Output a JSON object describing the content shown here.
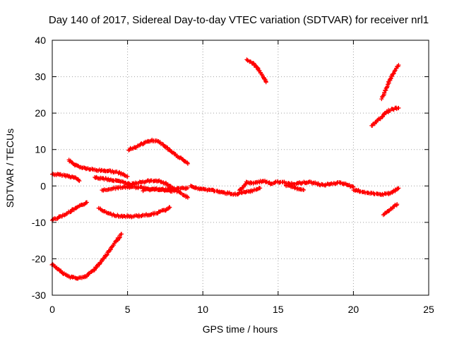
{
  "chart_data": {
    "type": "scatter",
    "title": "Day 140 of 2017, Sidereal Day-to-day VTEC variation (SDTVAR) for receiver nrl1",
    "xlabel": "GPS time / hours",
    "ylabel": "SDTVAR / TECUs",
    "xlim": [
      0,
      25
    ],
    "ylim": [
      -30,
      40
    ],
    "xticks": [
      0,
      5,
      10,
      15,
      20,
      25
    ],
    "yticks": [
      -30,
      -20,
      -10,
      0,
      10,
      20,
      30,
      40
    ],
    "xtick_labels": [
      "0",
      "5",
      "10",
      "15",
      "20",
      "25"
    ],
    "ytick_labels": [
      "-30",
      "-20",
      "-10",
      "0",
      "10",
      "20",
      "30",
      "40"
    ],
    "grid": true,
    "marker": "plus",
    "series_color": "#ff0000",
    "series": [
      {
        "x": [
          0.0,
          0.4,
          0.8,
          1.2,
          1.6,
          1.8
        ],
        "y": [
          3.2,
          3.1,
          2.9,
          2.6,
          2.1,
          1.4
        ]
      },
      {
        "x": [
          0.0,
          0.5,
          1.0,
          1.5,
          2.0,
          2.3
        ],
        "y": [
          -9.3,
          -8.5,
          -7.5,
          -6.3,
          -5.2,
          -4.5
        ]
      },
      {
        "x": [
          0.0,
          0.4,
          0.8,
          1.2,
          1.6,
          2.0,
          2.3
        ],
        "y": [
          -21.5,
          -22.8,
          -24.2,
          -25.0,
          -25.3,
          -25.2,
          -24.8
        ]
      },
      {
        "x": [
          2.3,
          2.7,
          3.1,
          3.5,
          3.9,
          4.3,
          4.6
        ],
        "y": [
          -24.6,
          -23.3,
          -21.5,
          -19.4,
          -17.2,
          -14.9,
          -13.2
        ]
      },
      {
        "x": [
          1.1,
          1.5,
          2.0,
          2.5,
          3.0,
          3.5,
          4.0,
          4.5,
          5.0
        ],
        "y": [
          7.1,
          5.8,
          5.0,
          4.6,
          4.3,
          4.2,
          4.0,
          3.5,
          2.6
        ]
      },
      {
        "x": [
          2.8,
          3.4,
          4.0,
          4.6,
          5.1
        ],
        "y": [
          2.3,
          2.0,
          1.6,
          1.1,
          0.7
        ]
      },
      {
        "x": [
          3.3,
          3.8,
          4.5,
          5.2,
          6.0,
          6.8,
          7.5,
          8.1
        ],
        "y": [
          -1.3,
          -0.8,
          -0.4,
          -0.3,
          -0.5,
          -0.9,
          -1.2,
          -1.4
        ]
      },
      {
        "x": [
          3.1,
          3.8,
          4.5,
          5.2,
          6.0,
          6.8,
          7.5,
          7.8
        ],
        "y": [
          -6.3,
          -7.7,
          -8.3,
          -8.4,
          -8.1,
          -7.6,
          -6.6,
          -5.9
        ]
      },
      {
        "x": [
          5.1,
          5.6,
          6.1,
          6.6,
          7.0,
          7.5,
          8.0,
          8.6,
          9.0
        ],
        "y": [
          10.0,
          10.8,
          11.8,
          12.5,
          12.3,
          10.8,
          9.1,
          7.4,
          6.1
        ]
      },
      {
        "x": [
          5.0,
          5.6,
          6.3,
          7.0,
          7.6,
          8.2,
          8.7,
          9.0
        ],
        "y": [
          0.2,
          0.8,
          1.3,
          1.5,
          0.6,
          -1.2,
          -2.4,
          -3.2
        ]
      },
      {
        "x": [
          6.0,
          6.5,
          7.0,
          7.5,
          8.0,
          8.5,
          9.0
        ],
        "y": [
          -1.2,
          -1.0,
          -0.9,
          -1.0,
          -0.8,
          -0.7,
          -0.5
        ]
      },
      {
        "x": [
          9.2,
          9.7,
          10.2,
          10.7,
          11.2,
          11.7,
          12.2,
          12.7,
          13.2,
          13.8
        ],
        "y": [
          0.0,
          -0.8,
          -1.0,
          -1.2,
          -1.8,
          -2.0,
          -2.3,
          -1.8,
          -1.5,
          -0.6
        ]
      },
      {
        "x": [
          12.4,
          12.9,
          13.4,
          14.0,
          14.5,
          15.0,
          15.5,
          16.0,
          16.5,
          17.0,
          17.5,
          18.0,
          18.5,
          19.0,
          19.5,
          20.0
        ],
        "y": [
          -1.5,
          0.9,
          0.8,
          1.4,
          0.6,
          1.1,
          0.9,
          0.6,
          0.8,
          1.1,
          0.7,
          0.2,
          0.6,
          0.9,
          0.4,
          -0.3
        ]
      },
      {
        "x": [
          15.5,
          16.0,
          16.7
        ],
        "y": [
          0.3,
          -0.4,
          -1.1
        ]
      },
      {
        "x": [
          20.0,
          20.5,
          21.0,
          21.5,
          22.0,
          22.5,
          23.0
        ],
        "y": [
          -1.0,
          -1.5,
          -2.0,
          -2.2,
          -2.3,
          -2.0,
          -0.6
        ]
      },
      {
        "x": [
          12.9,
          13.3,
          13.7,
          14.0,
          14.2
        ],
        "y": [
          34.5,
          33.8,
          32.0,
          30.0,
          28.5
        ]
      },
      {
        "x": [
          21.2,
          21.6,
          22.0,
          22.4,
          22.8,
          23.0
        ],
        "y": [
          16.5,
          17.9,
          19.5,
          20.8,
          21.3,
          21.4
        ]
      },
      {
        "x": [
          21.9,
          22.2,
          22.5,
          22.8,
          23.0
        ],
        "y": [
          24.0,
          27.0,
          29.8,
          32.0,
          33.2
        ]
      },
      {
        "x": [
          22.0,
          22.3,
          22.6,
          22.9
        ],
        "y": [
          -7.8,
          -6.9,
          -5.9,
          -5.0
        ]
      }
    ]
  }
}
